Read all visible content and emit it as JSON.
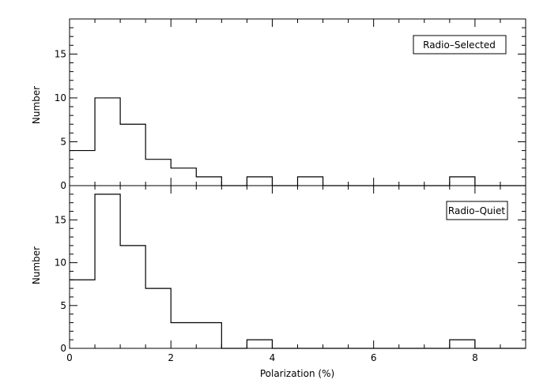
{
  "chart_data": [
    {
      "type": "histogram",
      "panel": "top",
      "label": "Radio–Selected",
      "ylabel": "Number",
      "xlim": [
        0,
        9
      ],
      "ylim": [
        0,
        19
      ],
      "yticks": [
        0,
        5,
        10,
        15
      ],
      "bin_width": 0.5,
      "bins": [
        {
          "x0": 0.0,
          "x1": 0.5,
          "count": 4
        },
        {
          "x0": 0.5,
          "x1": 1.0,
          "count": 10
        },
        {
          "x0": 1.0,
          "x1": 1.5,
          "count": 7
        },
        {
          "x0": 1.5,
          "x1": 2.0,
          "count": 3
        },
        {
          "x0": 2.0,
          "x1": 2.5,
          "count": 2
        },
        {
          "x0": 2.5,
          "x1": 3.0,
          "count": 1
        },
        {
          "x0": 3.5,
          "x1": 4.0,
          "count": 1
        },
        {
          "x0": 4.5,
          "x1": 5.0,
          "count": 1
        },
        {
          "x0": 7.5,
          "x1": 8.0,
          "count": 1
        }
      ]
    },
    {
      "type": "histogram",
      "panel": "bottom",
      "label": "Radio–Quiet",
      "ylabel": "Number",
      "xlabel": "Polarization (%)",
      "xlim": [
        0,
        9
      ],
      "ylim": [
        0,
        19
      ],
      "yticks": [
        0,
        5,
        10,
        15
      ],
      "xticks": [
        0,
        2,
        4,
        6,
        8
      ],
      "bin_width": 0.5,
      "bins": [
        {
          "x0": 0.0,
          "x1": 0.5,
          "count": 8
        },
        {
          "x0": 0.5,
          "x1": 1.0,
          "count": 18
        },
        {
          "x0": 1.0,
          "x1": 1.5,
          "count": 12
        },
        {
          "x0": 1.5,
          "x1": 2.0,
          "count": 7
        },
        {
          "x0": 2.0,
          "x1": 2.5,
          "count": 3
        },
        {
          "x0": 2.5,
          "x1": 3.0,
          "count": 3
        },
        {
          "x0": 3.5,
          "x1": 4.0,
          "count": 1
        },
        {
          "x0": 7.5,
          "x1": 8.0,
          "count": 1
        }
      ]
    }
  ]
}
